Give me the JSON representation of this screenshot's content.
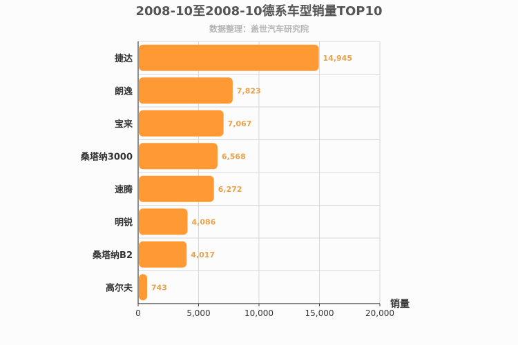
{
  "chart_data": {
    "type": "bar",
    "orientation": "horizontal",
    "title": "2008-10至2008-10德系车型销量TOP10",
    "subtitle": "数据整理：盖世汽车研究院",
    "categories": [
      "捷达",
      "朗逸",
      "宝来",
      "桑塔纳3000",
      "速腾",
      "明锐",
      "桑塔纳B2",
      "高尔夫"
    ],
    "values": [
      14945,
      7823,
      7067,
      6568,
      6272,
      4086,
      4017,
      743
    ],
    "value_labels": [
      "14,945",
      "7,823",
      "7,067",
      "6,568",
      "6,272",
      "4,086",
      "4,017",
      "743"
    ],
    "xlabel": "销量",
    "ylabel": "",
    "xlim": [
      0,
      20000
    ],
    "xticks": [
      0,
      5000,
      10000,
      15000,
      20000
    ],
    "xtick_labels": [
      "0",
      "5,000",
      "10,000",
      "15,000",
      "20,000"
    ],
    "bar_color": "#ff9933",
    "grid": true
  }
}
